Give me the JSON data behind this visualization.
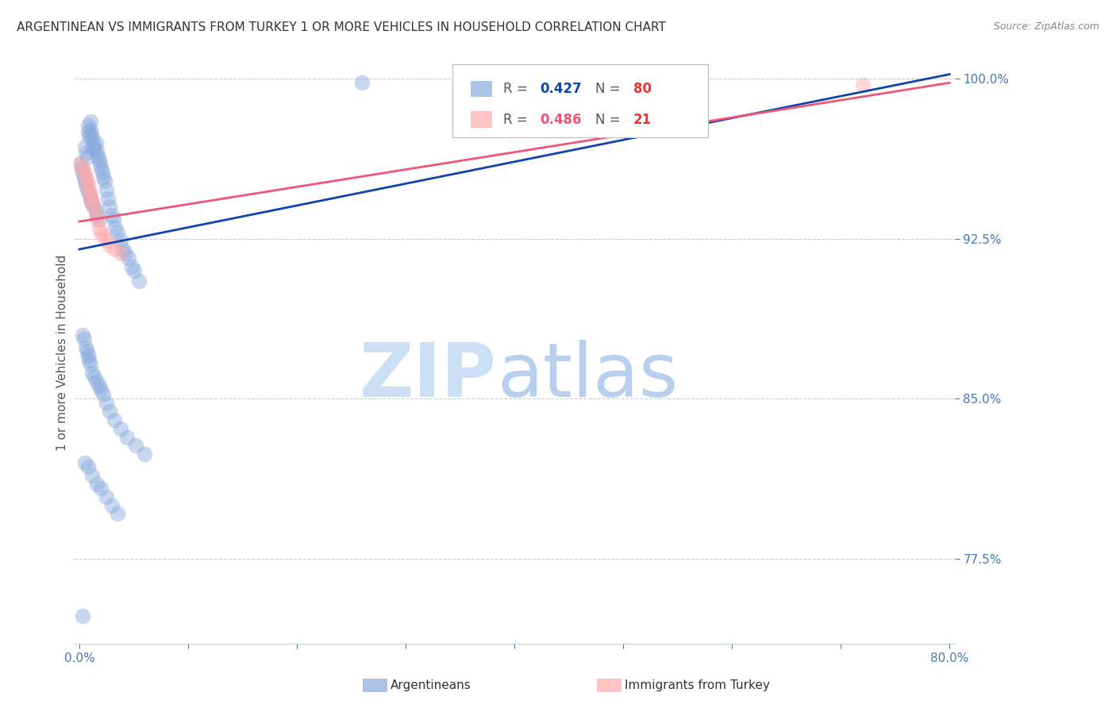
{
  "title": "ARGENTINEAN VS IMMIGRANTS FROM TURKEY 1 OR MORE VEHICLES IN HOUSEHOLD CORRELATION CHART",
  "source": "Source: ZipAtlas.com",
  "ylabel": "1 or more Vehicles in Household",
  "xlim": [
    -0.005,
    0.805
  ],
  "ylim": [
    0.735,
    1.008
  ],
  "yticks": [
    0.775,
    0.85,
    0.925,
    1.0
  ],
  "ytick_labels": [
    "77.5%",
    "85.0%",
    "92.5%",
    "100.0%"
  ],
  "xticks": [
    0.0,
    0.1,
    0.2,
    0.3,
    0.4,
    0.5,
    0.6,
    0.7,
    0.8
  ],
  "xtick_labels": [
    "0.0%",
    "",
    "",
    "",
    "",
    "",
    "",
    "",
    "80.0%"
  ],
  "blue_color": "#88AADD",
  "pink_color": "#FFAAAA",
  "blue_line_color": "#1144AA",
  "pink_line_color": "#EE5577",
  "legend_R_blue": "0.427",
  "legend_N_blue": "80",
  "legend_R_pink": "0.486",
  "legend_N_pink": "21",
  "legend_label_blue": "Argentineans",
  "legend_label_pink": "Immigrants from Turkey",
  "blue_trend_x0": 0.0,
  "blue_trend_x1": 0.8,
  "blue_trend_y0": 0.92,
  "blue_trend_y1": 1.002,
  "pink_trend_x0": 0.0,
  "pink_trend_x1": 0.8,
  "pink_trend_y0": 0.933,
  "pink_trend_y1": 0.998,
  "blue_x": [
    0.001,
    0.002,
    0.003,
    0.004,
    0.005,
    0.005,
    0.006,
    0.006,
    0.007,
    0.007,
    0.008,
    0.008,
    0.009,
    0.009,
    0.01,
    0.01,
    0.01,
    0.011,
    0.011,
    0.012,
    0.012,
    0.013,
    0.013,
    0.014,
    0.015,
    0.015,
    0.016,
    0.016,
    0.017,
    0.018,
    0.018,
    0.019,
    0.02,
    0.021,
    0.022,
    0.023,
    0.025,
    0.026,
    0.028,
    0.03,
    0.031,
    0.033,
    0.035,
    0.038,
    0.04,
    0.042,
    0.045,
    0.048,
    0.05,
    0.055,
    0.003,
    0.004,
    0.006,
    0.007,
    0.008,
    0.009,
    0.01,
    0.012,
    0.014,
    0.016,
    0.018,
    0.02,
    0.022,
    0.025,
    0.028,
    0.032,
    0.038,
    0.044,
    0.052,
    0.06,
    0.005,
    0.008,
    0.012,
    0.016,
    0.02,
    0.025,
    0.03,
    0.035,
    0.26,
    0.003
  ],
  "blue_y": [
    0.96,
    0.958,
    0.956,
    0.954,
    0.968,
    0.952,
    0.965,
    0.95,
    0.963,
    0.948,
    0.975,
    0.978,
    0.973,
    0.946,
    0.98,
    0.976,
    0.944,
    0.974,
    0.942,
    0.972,
    0.968,
    0.969,
    0.94,
    0.967,
    0.97,
    0.938,
    0.966,
    0.936,
    0.964,
    0.962,
    0.934,
    0.96,
    0.958,
    0.956,
    0.954,
    0.952,
    0.948,
    0.944,
    0.94,
    0.936,
    0.934,
    0.93,
    0.928,
    0.924,
    0.92,
    0.918,
    0.916,
    0.912,
    0.91,
    0.905,
    0.88,
    0.878,
    0.874,
    0.872,
    0.87,
    0.868,
    0.866,
    0.862,
    0.86,
    0.858,
    0.856,
    0.854,
    0.852,
    0.848,
    0.844,
    0.84,
    0.836,
    0.832,
    0.828,
    0.824,
    0.82,
    0.818,
    0.814,
    0.81,
    0.808,
    0.804,
    0.8,
    0.796,
    0.998,
    0.748
  ],
  "pink_x": [
    0.001,
    0.003,
    0.005,
    0.006,
    0.007,
    0.008,
    0.009,
    0.01,
    0.011,
    0.012,
    0.013,
    0.015,
    0.016,
    0.018,
    0.02,
    0.022,
    0.025,
    0.028,
    0.032,
    0.038,
    0.72
  ],
  "pink_y": [
    0.96,
    0.958,
    0.956,
    0.954,
    0.952,
    0.95,
    0.948,
    0.946,
    0.944,
    0.942,
    0.94,
    0.936,
    0.934,
    0.93,
    0.928,
    0.926,
    0.924,
    0.922,
    0.92,
    0.918,
    0.997
  ]
}
